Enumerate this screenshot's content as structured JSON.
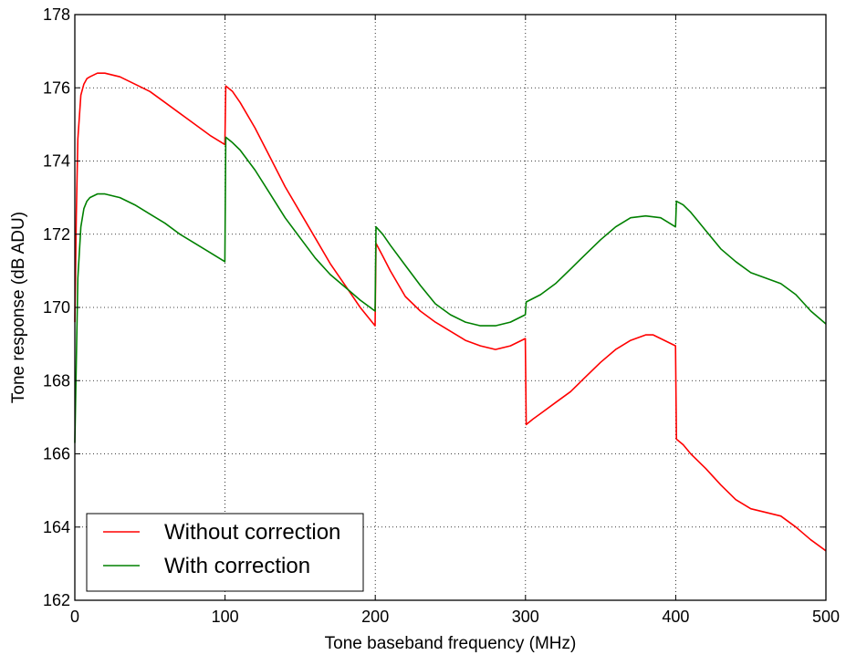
{
  "chart_data": {
    "type": "line",
    "xlabel": "Tone baseband frequency (MHz)",
    "ylabel": "Tone response (dB ADU)",
    "xlim": [
      0,
      500
    ],
    "ylim": [
      162,
      178
    ],
    "xticks": [
      "0",
      "100",
      "200",
      "300",
      "400",
      "500"
    ],
    "yticks": [
      "162",
      "164",
      "166",
      "168",
      "170",
      "172",
      "174",
      "176",
      "178"
    ],
    "grid": true,
    "legend_position": "bottom-left",
    "series": [
      {
        "name": "Without correction",
        "color": "#ff0000",
        "x": [
          0,
          1,
          2,
          4,
          6,
          8,
          10,
          15,
          20,
          30,
          40,
          50,
          60,
          70,
          80,
          90,
          99.9,
          100.5,
          105,
          110,
          120,
          130,
          140,
          150,
          160,
          170,
          180,
          190,
          199.9,
          200.5,
          205,
          210,
          220,
          230,
          240,
          250,
          260,
          270,
          280,
          290,
          299.9,
          300.5,
          305,
          310,
          320,
          330,
          340,
          350,
          360,
          370,
          380,
          385,
          390,
          399.9,
          400.5,
          405,
          410,
          420,
          430,
          440,
          450,
          460,
          470,
          480,
          490,
          500
        ],
        "y": [
          169.6,
          172.5,
          174.6,
          175.8,
          176.1,
          176.25,
          176.3,
          176.4,
          176.4,
          176.3,
          176.1,
          175.9,
          175.6,
          175.3,
          175.0,
          174.7,
          174.45,
          176.05,
          175.9,
          175.6,
          174.9,
          174.1,
          173.3,
          172.6,
          171.9,
          171.2,
          170.6,
          170.0,
          169.5,
          171.75,
          171.4,
          171.0,
          170.3,
          169.9,
          169.6,
          169.35,
          169.1,
          168.95,
          168.85,
          168.95,
          169.15,
          166.8,
          166.95,
          167.1,
          167.4,
          167.7,
          168.1,
          168.5,
          168.85,
          169.1,
          169.25,
          169.25,
          169.15,
          168.95,
          166.4,
          166.25,
          166.0,
          165.6,
          165.15,
          164.75,
          164.5,
          164.4,
          164.3,
          164.0,
          163.65,
          163.35
        ]
      },
      {
        "name": "With correction",
        "color": "#008000",
        "x": [
          0,
          1,
          2,
          4,
          6,
          8,
          10,
          15,
          20,
          30,
          40,
          50,
          60,
          70,
          80,
          90,
          99.9,
          100.5,
          105,
          110,
          120,
          130,
          140,
          150,
          160,
          170,
          180,
          190,
          199.9,
          200.5,
          205,
          210,
          220,
          230,
          240,
          250,
          260,
          270,
          280,
          290,
          299.9,
          300.5,
          310,
          320,
          330,
          340,
          350,
          360,
          370,
          380,
          390,
          399.9,
          400.5,
          405,
          410,
          420,
          430,
          440,
          450,
          460,
          470,
          480,
          490,
          500
        ],
        "y": [
          166.3,
          168.5,
          170.8,
          172.2,
          172.7,
          172.9,
          173.0,
          173.1,
          173.1,
          173.0,
          172.8,
          172.55,
          172.3,
          172.0,
          171.75,
          171.5,
          171.25,
          174.65,
          174.5,
          174.3,
          173.75,
          173.1,
          172.45,
          171.9,
          171.35,
          170.9,
          170.55,
          170.2,
          169.9,
          172.2,
          172.0,
          171.7,
          171.15,
          170.6,
          170.1,
          169.8,
          169.6,
          169.5,
          169.5,
          169.6,
          169.8,
          170.15,
          170.35,
          170.65,
          171.05,
          171.45,
          171.85,
          172.2,
          172.45,
          172.5,
          172.45,
          172.2,
          172.9,
          172.8,
          172.6,
          172.1,
          171.6,
          171.25,
          170.95,
          170.8,
          170.65,
          170.35,
          169.9,
          169.55
        ]
      }
    ]
  }
}
